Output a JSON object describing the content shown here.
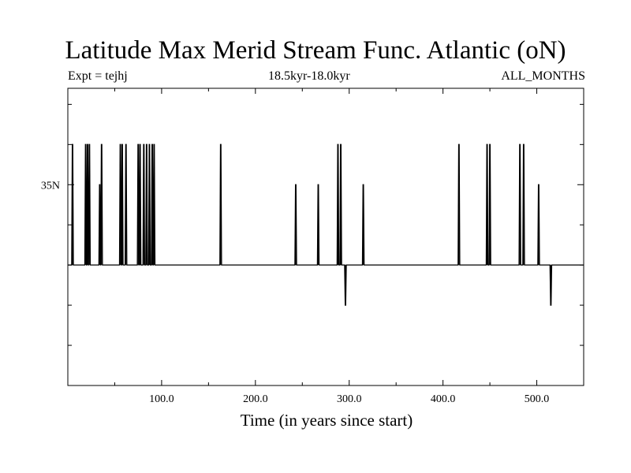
{
  "chart_data": {
    "type": "line",
    "title": "Latitude Max Merid Stream Func. Atlantic (oN)",
    "subtitle_left": "Expt = tejhj",
    "subtitle_center": "18.5kyr-18.0kyr",
    "subtitle_right": "ALL_MONTHS",
    "xlabel": "Time (in years since start)",
    "ylabel": "",
    "xlim": [
      0,
      550
    ],
    "ylim": [
      10,
      47
    ],
    "x_ticks": [
      100,
      200,
      300,
      400,
      500
    ],
    "x_tick_labels": [
      "100.0",
      "200.0",
      "300.0",
      "400.0",
      "500.0"
    ],
    "y_ticks": [
      35
    ],
    "y_tick_labels": [
      "35N"
    ],
    "baseline": 25,
    "grid": false,
    "legend": "none",
    "line_color": "#000000",
    "spikes": [
      {
        "x": 5,
        "y": 40
      },
      {
        "x": 19,
        "y": 40
      },
      {
        "x": 21,
        "y": 40
      },
      {
        "x": 23,
        "y": 40
      },
      {
        "x": 34,
        "y": 35
      },
      {
        "x": 36,
        "y": 40
      },
      {
        "x": 56,
        "y": 40
      },
      {
        "x": 58,
        "y": 40
      },
      {
        "x": 62,
        "y": 40
      },
      {
        "x": 75,
        "y": 40
      },
      {
        "x": 77,
        "y": 40
      },
      {
        "x": 81,
        "y": 40
      },
      {
        "x": 84,
        "y": 40
      },
      {
        "x": 87,
        "y": 40
      },
      {
        "x": 90,
        "y": 40
      },
      {
        "x": 92,
        "y": 40
      },
      {
        "x": 163,
        "y": 40
      },
      {
        "x": 243,
        "y": 35
      },
      {
        "x": 267,
        "y": 35
      },
      {
        "x": 288,
        "y": 40
      },
      {
        "x": 291,
        "y": 40
      },
      {
        "x": 296,
        "y": 20
      },
      {
        "x": 315,
        "y": 35
      },
      {
        "x": 417,
        "y": 40
      },
      {
        "x": 447,
        "y": 40
      },
      {
        "x": 450,
        "y": 40
      },
      {
        "x": 482,
        "y": 40
      },
      {
        "x": 486,
        "y": 40
      },
      {
        "x": 502,
        "y": 35
      },
      {
        "x": 515,
        "y": 20
      }
    ]
  }
}
